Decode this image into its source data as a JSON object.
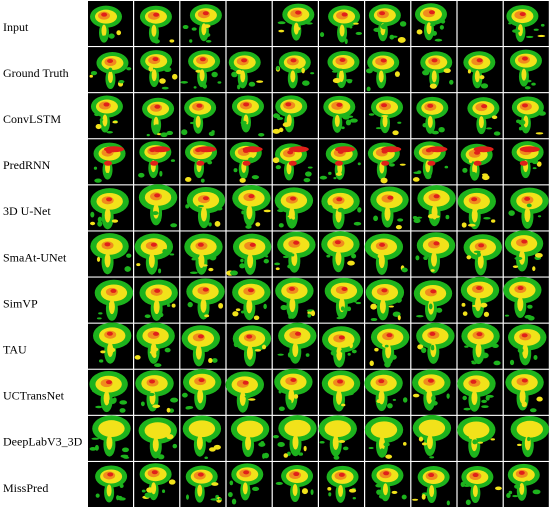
{
  "row_labels": [
    "Input",
    "Ground Truth",
    "ConvLSTM",
    "PredRNN",
    "3D U-Net",
    "SmaAt-UNet",
    "SimVP",
    "TAU",
    "UCTransNet",
    "DeepLabV3_3D",
    "MissPred"
  ]
}
